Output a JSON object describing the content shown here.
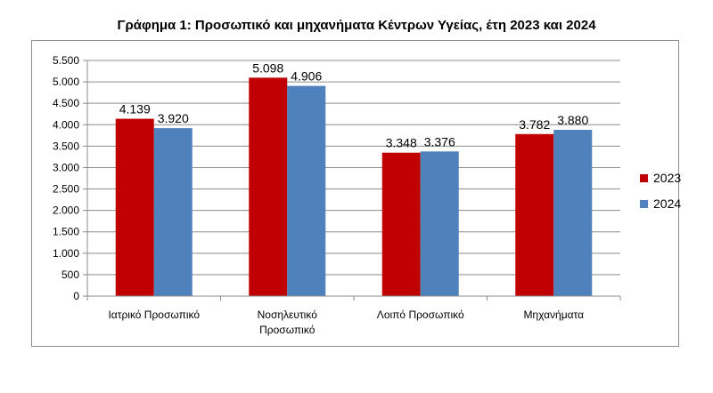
{
  "chart_data": {
    "type": "bar",
    "title": "Γράφημα 1: Προσωπικό και μηχανήματα Κέντρων Υγείας, έτη 2023 και 2024",
    "categories": [
      [
        "Ιατρικό Προσωπικό"
      ],
      [
        "Νοσηλευτικό",
        "Προσωπικό"
      ],
      [
        "Λοιπό Προσωπικό"
      ],
      [
        "Μηχανήματα"
      ]
    ],
    "series": [
      {
        "name": "2023",
        "color": "#c00000",
        "values": [
          4139,
          5098,
          3348,
          3782
        ],
        "labels": [
          "4.139",
          "5.098",
          "3.348",
          "3.782"
        ]
      },
      {
        "name": "2024",
        "color": "#4f81bd",
        "values": [
          3920,
          4906,
          3376,
          3880
        ],
        "labels": [
          "3.920",
          "4.906",
          "3.376",
          "3.880"
        ]
      }
    ],
    "ylim": [
      0,
      5500
    ],
    "yticks": [
      0,
      500,
      1000,
      1500,
      2000,
      2500,
      3000,
      3500,
      4000,
      4500,
      5000,
      5500
    ],
    "ytick_labels": [
      "0",
      "500",
      "1.000",
      "1.500",
      "2.000",
      "2.500",
      "3.000",
      "3.500",
      "4.000",
      "4.500",
      "5.000",
      "5.500"
    ],
    "grid": true,
    "legend_position": "right",
    "xlabel": "",
    "ylabel": ""
  }
}
